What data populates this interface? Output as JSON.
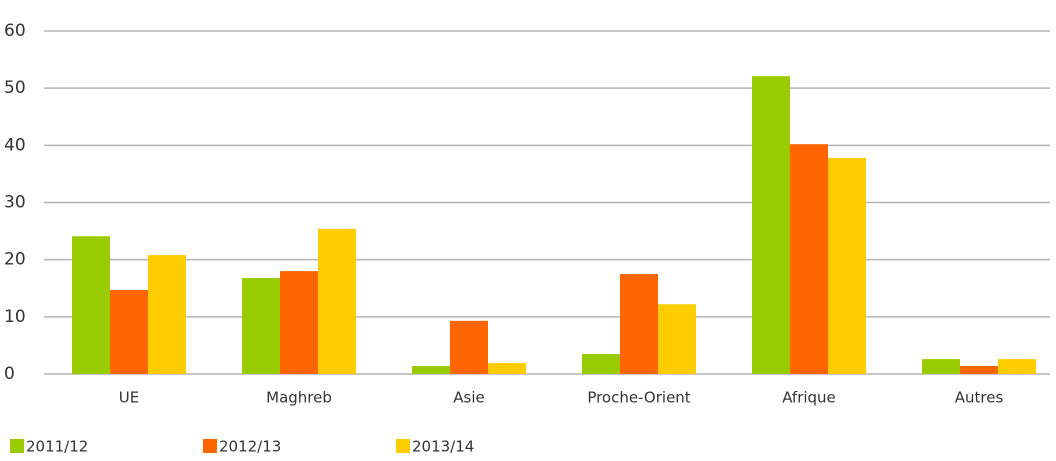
{
  "chart_data": {
    "type": "bar",
    "categories": [
      "UE",
      "Maghreb",
      "Asie",
      "Proche-Orient",
      "Afrique",
      "Autres"
    ],
    "series": [
      {
        "name": "2011/12",
        "color": "#99cc00",
        "values": [
          24.1,
          16.8,
          1.4,
          3.5,
          52.1,
          2.6
        ]
      },
      {
        "name": "2012/13",
        "color": "#ff6600",
        "values": [
          14.7,
          18,
          9.3,
          17.5,
          40.2,
          1.4
        ]
      },
      {
        "name": "2013/14",
        "color": "#ffcc00",
        "values": [
          20.8,
          25.4,
          1.9,
          12.2,
          37.8,
          2.6
        ]
      }
    ],
    "ylim": [
      0,
      60
    ],
    "yticks": [
      0,
      10,
      20,
      30,
      40,
      50,
      60
    ],
    "grid": true,
    "legend": "bottom-left"
  }
}
